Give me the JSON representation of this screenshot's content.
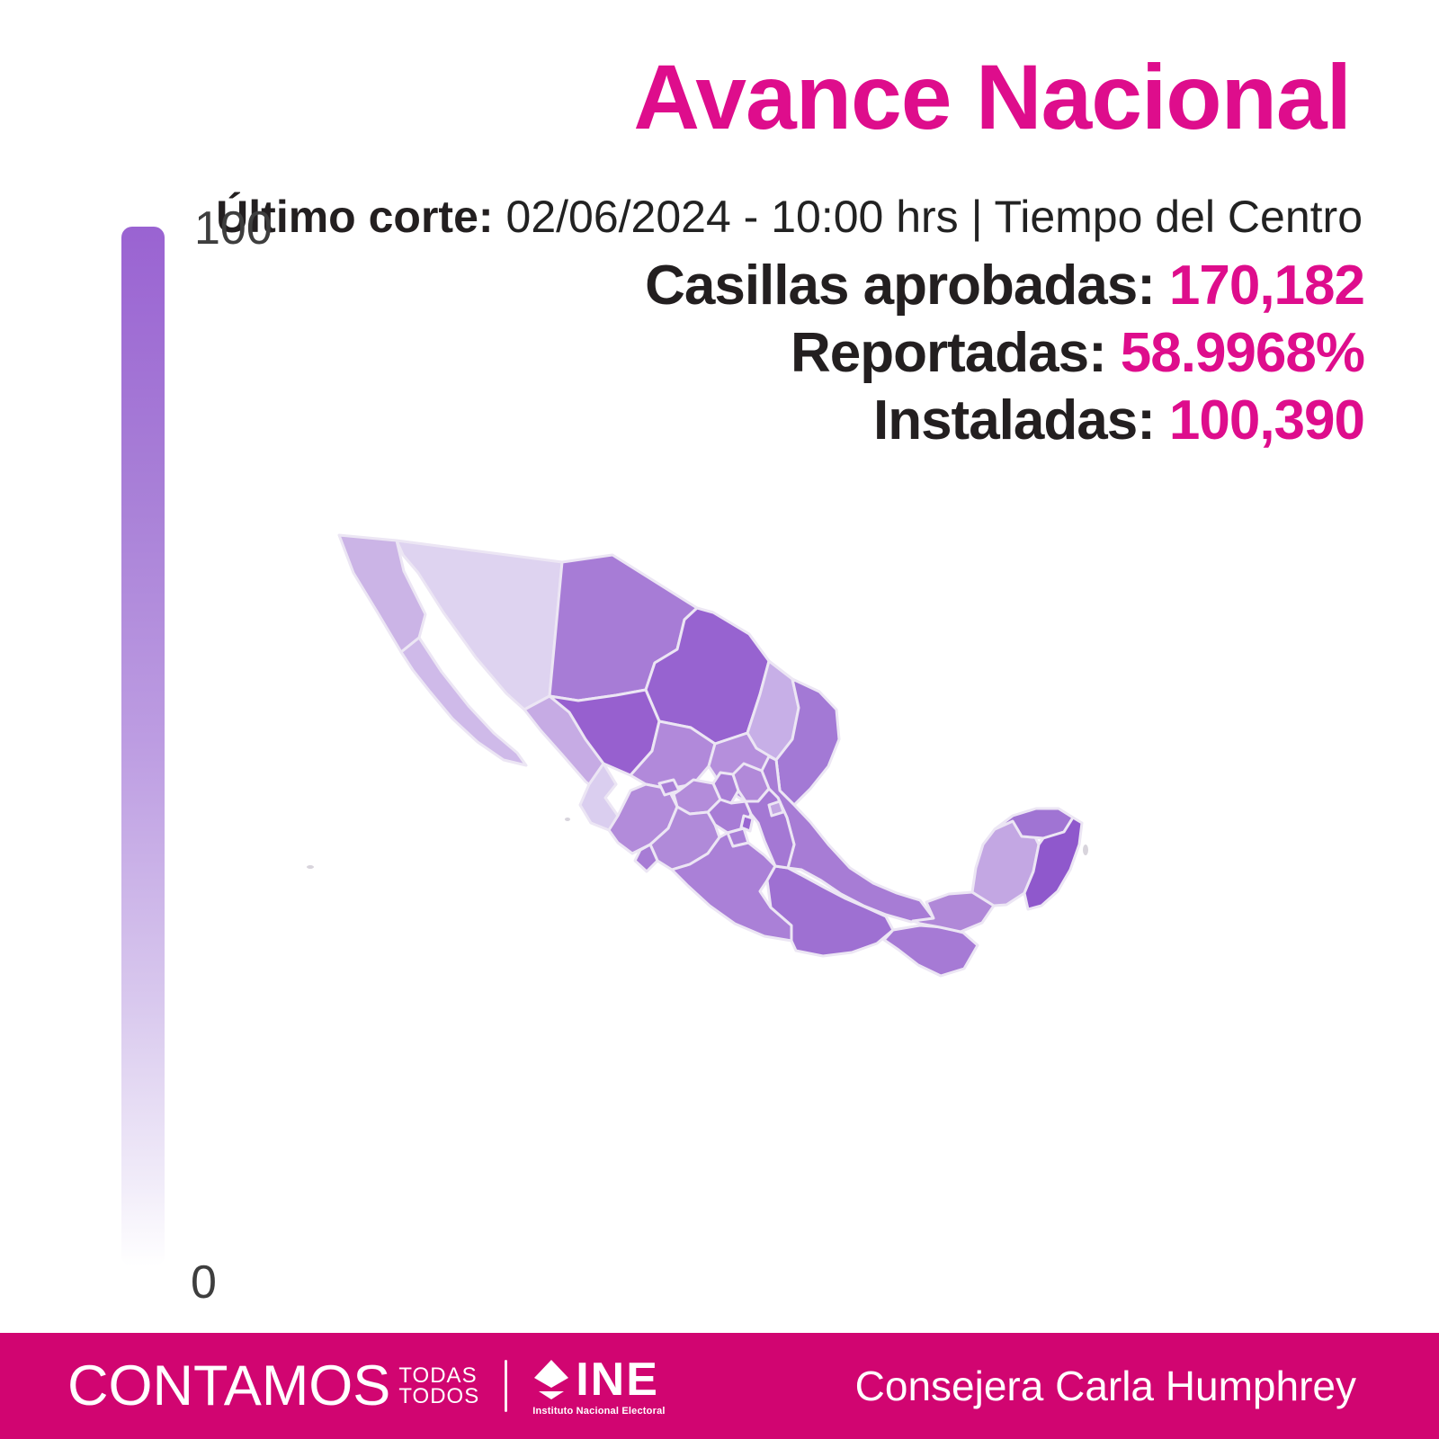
{
  "title": "Avance Nacional",
  "subtitle": {
    "label": "Último corte:",
    "text": "02/06/2024 - 10:00 hrs | Tiempo del Centro"
  },
  "stats": [
    {
      "label": "Casillas aprobadas:",
      "value": "170,182"
    },
    {
      "label": "Reportadas:",
      "value": "58.9968%"
    },
    {
      "label": "Instaladas:",
      "value": "100,390"
    }
  ],
  "legend": {
    "max_label": "100",
    "min_label": "0",
    "top_color": "#9a63d2",
    "bottom_color": "#ffffff"
  },
  "map": {
    "border_color": "#ece6f4",
    "island_color": "#d8d4dc",
    "states": [
      {
        "name": "sonora",
        "color": "#ded3f0"
      },
      {
        "name": "chihuahua",
        "color": "#a77cd6"
      },
      {
        "name": "coahuila",
        "color": "#9763d0"
      },
      {
        "name": "nuevo-leon",
        "color": "#c7afe7"
      },
      {
        "name": "tamaulipas",
        "color": "#a379d5"
      },
      {
        "name": "baja-california",
        "color": "#cbb4e6"
      },
      {
        "name": "baja-california-sur",
        "color": "#cfbae9"
      },
      {
        "name": "sinaloa",
        "color": "#c6abe4"
      },
      {
        "name": "durango",
        "color": "#9760cf"
      },
      {
        "name": "zacatecas",
        "color": "#b189da"
      },
      {
        "name": "san-luis-potosi",
        "color": "#b58fdc"
      },
      {
        "name": "veracruz",
        "color": "#a77cd5"
      },
      {
        "name": "nayarit",
        "color": "#daceef"
      },
      {
        "name": "jalisco",
        "color": "#b28bda"
      },
      {
        "name": "guanajuato",
        "color": "#b38cda"
      },
      {
        "name": "queretaro",
        "color": "#a87dd6"
      },
      {
        "name": "hidalgo",
        "color": "#b189d9"
      },
      {
        "name": "michoacan",
        "color": "#b08ad9"
      },
      {
        "name": "guerrero",
        "color": "#aa80d7"
      },
      {
        "name": "oaxaca",
        "color": "#9e70d2"
      },
      {
        "name": "chiapas",
        "color": "#a67ad5"
      },
      {
        "name": "tabasco",
        "color": "#b088d8"
      },
      {
        "name": "campeche",
        "color": "#c3a7e3"
      },
      {
        "name": "yucatan",
        "color": "#a074d3"
      },
      {
        "name": "quintana-roo",
        "color": "#8f58cc"
      },
      {
        "name": "aguascalientes",
        "color": "#a87ed6"
      },
      {
        "name": "estado-de-mexico",
        "color": "#a77cd5"
      },
      {
        "name": "puebla",
        "color": "#a478d4"
      },
      {
        "name": "tlaxcala",
        "color": "#c2a6e2"
      },
      {
        "name": "morelos",
        "color": "#a97fd7"
      },
      {
        "name": "cdmx",
        "color": "#9966d1"
      },
      {
        "name": "colima",
        "color": "#a77cd5"
      }
    ]
  },
  "footer": {
    "bar_color": "#d10571",
    "brand": "CONTAMOS",
    "brand_sub1": "TODAS",
    "brand_sub2": "TODOS",
    "logo_text": "INE",
    "logo_subtext": "Instituto Nacional Electoral",
    "credit": "Consejera Carla Humphrey"
  },
  "theme": {
    "accent_pink": "#de0d8c",
    "text_dark": "#231f20",
    "legend_label_color": "#3e3e3e"
  }
}
